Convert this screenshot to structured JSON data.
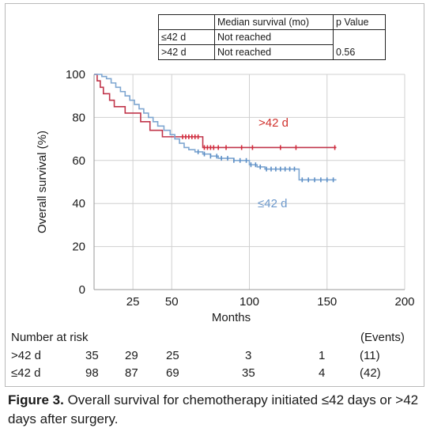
{
  "chart_data": {
    "type": "line",
    "ylabel": "Overall survival (%)",
    "xlabel": "Months",
    "xlim": [
      0,
      200
    ],
    "ylim": [
      0,
      100
    ],
    "x_ticks": [
      25,
      50,
      100,
      150,
      200
    ],
    "y_ticks": [
      0,
      20,
      40,
      60,
      80,
      100
    ],
    "grid": true,
    "series": [
      {
        "name": ">42 d",
        "color": "#c0354a",
        "marker_color": "#d62a3a",
        "label_color": "#d0312d",
        "steps": [
          [
            0,
            100
          ],
          [
            2,
            97
          ],
          [
            4,
            94
          ],
          [
            6,
            91
          ],
          [
            10,
            88
          ],
          [
            13,
            85
          ],
          [
            20,
            82
          ],
          [
            30,
            78
          ],
          [
            36,
            74
          ],
          [
            44,
            71
          ],
          [
            52,
            71
          ],
          [
            68,
            71
          ],
          [
            70,
            66
          ],
          [
            156,
            66
          ]
        ],
        "censored_x": [
          57,
          59,
          61,
          63,
          65,
          67,
          71,
          73,
          75,
          77,
          80,
          85,
          95,
          102,
          120,
          130,
          155
        ]
      },
      {
        "name": "≤42 d",
        "color": "#7ea6d1",
        "marker_color": "#5d8fc6",
        "label_color": "#6c98cb",
        "steps": [
          [
            0,
            100
          ],
          [
            5,
            99
          ],
          [
            8,
            98
          ],
          [
            11,
            96
          ],
          [
            14,
            94
          ],
          [
            17,
            92
          ],
          [
            20,
            90
          ],
          [
            23,
            88
          ],
          [
            26,
            86
          ],
          [
            29,
            84
          ],
          [
            32,
            82
          ],
          [
            35,
            80
          ],
          [
            38,
            78
          ],
          [
            41,
            76
          ],
          [
            45,
            74
          ],
          [
            49,
            72
          ],
          [
            52,
            70
          ],
          [
            55,
            68
          ],
          [
            58,
            66
          ],
          [
            61,
            65
          ],
          [
            65,
            64
          ],
          [
            70,
            63
          ],
          [
            75,
            62
          ],
          [
            80,
            61
          ],
          [
            90,
            60
          ],
          [
            100,
            58
          ],
          [
            105,
            57
          ],
          [
            110,
            56
          ],
          [
            130,
            56
          ],
          [
            132,
            51
          ],
          [
            156,
            51
          ]
        ],
        "censored_x": [
          67,
          71,
          75,
          79,
          82,
          86,
          90,
          94,
          98,
          101,
          104,
          107,
          111,
          114,
          117,
          120,
          123,
          126,
          129,
          134,
          138,
          142,
          146,
          150,
          154
        ]
      }
    ]
  },
  "survival_table": {
    "header": [
      "",
      "Median survival (mo)",
      "p Value"
    ],
    "rows": [
      {
        "group": "≤42 d",
        "median": "Not reached"
      },
      {
        "group": ">42 d",
        "median": "Not reached"
      }
    ],
    "p_value": "0.56"
  },
  "risk_table": {
    "title": "Number at risk",
    "events_header": "(Events)",
    "rows": [
      {
        "group": ">42 d",
        "counts": [
          "35",
          "29",
          "25",
          "3",
          "1"
        ],
        "events": "(11)"
      },
      {
        "group": "≤42 d",
        "counts": [
          "98",
          "87",
          "69",
          "35",
          "4"
        ],
        "events": "(42)"
      }
    ]
  },
  "caption": {
    "label": "Figure 3.",
    "text": " Overall survival for chemotherapy initiated ≤42 days or >42 days after surgery."
  }
}
